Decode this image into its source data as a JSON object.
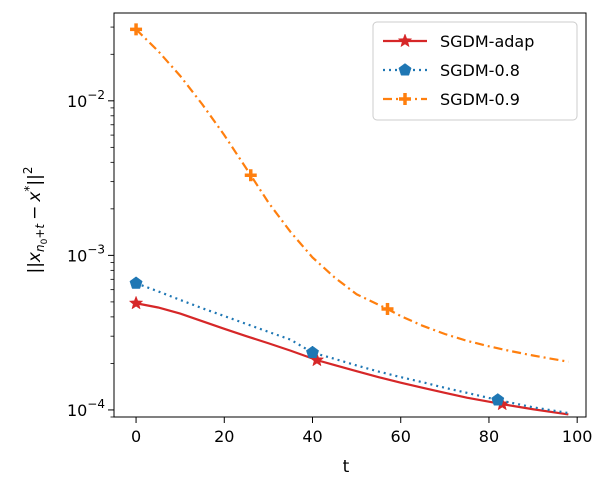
{
  "chart_data": {
    "type": "line",
    "xlabel": "t",
    "ylabel_parts": {
      "pre": "||",
      "x_bar": "x",
      "sub_n": "n",
      "sub_0": "0",
      "sub_plus_t": "+t",
      "minus": "−",
      "x_star": "x",
      "star": "*",
      "post": "||",
      "sq": "2"
    },
    "xlim": [
      -5,
      102
    ],
    "ylim": [
      9e-05,
      0.037
    ],
    "yscale": "log",
    "grid": false,
    "legend_position": "top-right",
    "x_ticks": [
      0,
      20,
      40,
      60,
      80,
      100
    ],
    "x_tick_labels": [
      "0",
      "20",
      "40",
      "60",
      "80",
      "100"
    ],
    "y_major_ticks": [
      {
        "value": 0.0001,
        "base": "10",
        "exp": "−4"
      },
      {
        "value": 0.001,
        "base": "10",
        "exp": "−3"
      },
      {
        "value": 0.01,
        "base": "10",
        "exp": "−2"
      }
    ],
    "series": [
      {
        "name": "SGDM-adap",
        "color": "#d62728",
        "dash": "solid",
        "marker": "star",
        "x": [
          0,
          5,
          10,
          15,
          20,
          25,
          30,
          35,
          41,
          45,
          50,
          55,
          60,
          65,
          70,
          75,
          80,
          83,
          90,
          98
        ],
        "y": [
          0.00049,
          0.00046,
          0.00042,
          0.000375,
          0.000335,
          0.0003,
          0.00027,
          0.000242,
          0.00021,
          0.000195,
          0.000178,
          0.000163,
          0.00015,
          0.000139,
          0.000129,
          0.00012,
          0.000113,
          0.000109,
          0.000101,
          9.35e-05
        ],
        "marker_points": [
          [
            0,
            0.00049
          ],
          [
            41,
            0.00021
          ],
          [
            83,
            0.000109
          ]
        ]
      },
      {
        "name": "SGDM-0.8",
        "color": "#1f77b4",
        "dash": "dotted",
        "marker": "pentagon",
        "x": [
          0,
          5,
          10,
          15,
          20,
          25,
          30,
          35,
          40,
          45,
          50,
          55,
          60,
          65,
          70,
          75,
          82,
          90,
          98
        ],
        "y": [
          0.00066,
          0.000585,
          0.000515,
          0.000455,
          0.000405,
          0.00036,
          0.00032,
          0.000285,
          0.000235,
          0.000214,
          0.000194,
          0.000177,
          0.000163,
          0.000151,
          0.000139,
          0.000129,
          0.000116,
          0.000104,
          9.55e-05
        ],
        "marker_points": [
          [
            0,
            0.00066
          ],
          [
            40,
            0.000235
          ],
          [
            82,
            0.000116
          ]
        ]
      },
      {
        "name": "SGDM-0.9",
        "color": "#ff7f0e",
        "dash": "dashdot",
        "marker": "plus",
        "x": [
          0,
          5,
          10,
          15,
          20,
          26,
          30,
          35,
          40,
          45,
          50,
          57,
          60,
          65,
          70,
          75,
          80,
          85,
          90,
          98
        ],
        "y": [
          0.029,
          0.021,
          0.0145,
          0.0095,
          0.006,
          0.0033,
          0.0022,
          0.00142,
          0.00097,
          0.00072,
          0.00056,
          0.00045,
          0.000405,
          0.00035,
          0.00031,
          0.00028,
          0.000258,
          0.00024,
          0.000225,
          0.000205
        ],
        "marker_points": [
          [
            0,
            0.029
          ],
          [
            26,
            0.0033
          ],
          [
            57,
            0.00045
          ]
        ]
      }
    ]
  }
}
